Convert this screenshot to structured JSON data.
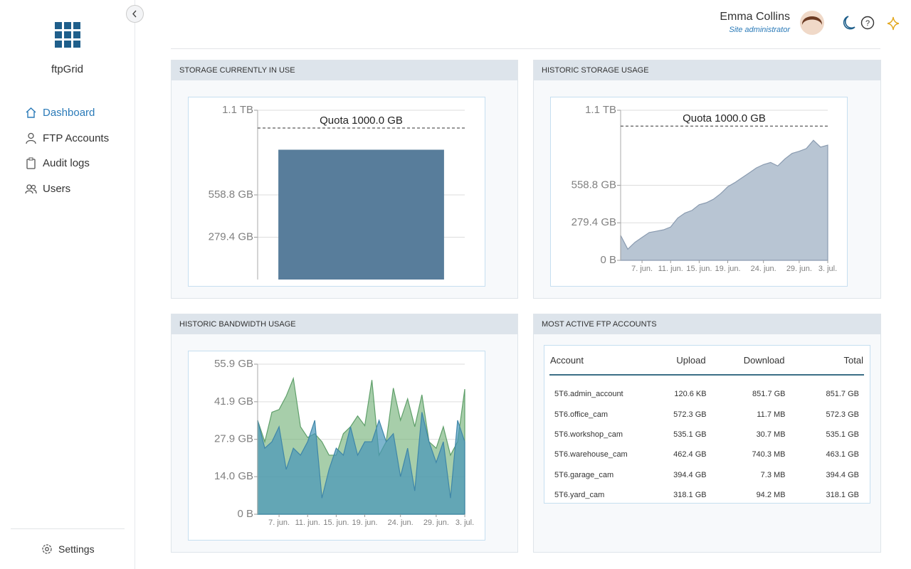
{
  "sidebar": {
    "brand": "ftpGrid",
    "nav": [
      "Dashboard",
      "FTP Accounts",
      "Audit logs",
      "Users"
    ],
    "settings": "Settings"
  },
  "header": {
    "user": "Emma Collins",
    "role": "Site administrator"
  },
  "chart_data": [
    {
      "type": "bar",
      "title": "STORAGE CURRENTLY IN USE",
      "categories": [
        null
      ],
      "values": [
        857
      ],
      "color": "#587d9b",
      "ylim": [
        0,
        1117.6
      ],
      "yticks": [
        {
          "value": 279.4,
          "label": "279.4 GB"
        },
        {
          "value": 558.8,
          "label": "558.8 GB"
        },
        {
          "value": 1117.6,
          "label": "1.1 TB"
        }
      ],
      "annotations": [
        {
          "value": 1000,
          "label": "Quota 1000.0 GB"
        }
      ],
      "grid": true
    },
    {
      "type": "area",
      "title": "HISTORIC STORAGE USAGE",
      "x": [
        4,
        5,
        6,
        7,
        8,
        9,
        10,
        11,
        12,
        13,
        14,
        15,
        16,
        17,
        18,
        19,
        20,
        21,
        22,
        23,
        24,
        25,
        26,
        27,
        28,
        29,
        30,
        31,
        32,
        33
      ],
      "series": [
        {
          "color": "#8a9bb0",
          "fill": "#b8c5d3",
          "values": [
            186,
            83,
            134,
            171,
            207,
            217,
            227,
            248,
            315,
            352,
            372,
            414,
            429,
            455,
            496,
            548,
            579,
            615,
            651,
            688,
            713,
            729,
            703,
            755,
            796,
            812,
            832,
            894,
            843,
            858
          ]
        }
      ],
      "xlim": [
        4,
        33
      ],
      "xticks": [
        {
          "value": 7,
          "label": "7. jun."
        },
        {
          "value": 11,
          "label": "11. jun."
        },
        {
          "value": 15,
          "label": "15. jun."
        },
        {
          "value": 19,
          "label": "19. jun."
        },
        {
          "value": 24,
          "label": "24. jun."
        },
        {
          "value": 29,
          "label": "29. jun."
        },
        {
          "value": 33,
          "label": "3. jul."
        }
      ],
      "ylim": [
        0,
        1117.6
      ],
      "yticks": [
        {
          "value": 0,
          "label": "0 B"
        },
        {
          "value": 279.4,
          "label": "279.4 GB"
        },
        {
          "value": 558.8,
          "label": "558.8 GB"
        },
        {
          "value": 1117.6,
          "label": "1.1 TB"
        }
      ],
      "annotations": [
        {
          "value": 1000,
          "label": "Quota 1000.0 GB"
        }
      ],
      "grid": true
    },
    {
      "type": "area",
      "title": "HISTORIC BANDWIDTH USAGE",
      "x": [
        4,
        5,
        6,
        7,
        8,
        9,
        10,
        11,
        12,
        13,
        14,
        15,
        16,
        17,
        18,
        19,
        20,
        21,
        22,
        23,
        24,
        25,
        26,
        27,
        28,
        29,
        30,
        31,
        32,
        33
      ],
      "series": [
        {
          "color": "#5f9f6a",
          "fill": "rgba(120,180,125,0.65)",
          "values": [
            35,
            27,
            38,
            39,
            44,
            50.6,
            32.6,
            28.6,
            30,
            27,
            22,
            22,
            30,
            32.6,
            36.6,
            33,
            50,
            22,
            27,
            47,
            35,
            43,
            32.6,
            44.5,
            27,
            24.6,
            32.6,
            22,
            27,
            46.6
          ]
        },
        {
          "color": "#3f86a8",
          "fill": "rgba(70,150,185,0.7)",
          "values": [
            35,
            24.6,
            27,
            32.6,
            16.7,
            24.6,
            22,
            27,
            35,
            6,
            16.7,
            24.6,
            22,
            32.6,
            22,
            27,
            27,
            35,
            27,
            30,
            14,
            24.6,
            8.7,
            38,
            27,
            19.3,
            27,
            6,
            35,
            27
          ]
        }
      ],
      "xlim": [
        4,
        33
      ],
      "xticks": [
        {
          "value": 7,
          "label": "7. jun."
        },
        {
          "value": 11,
          "label": "11. jun."
        },
        {
          "value": 15,
          "label": "15. jun."
        },
        {
          "value": 19,
          "label": "19. jun."
        },
        {
          "value": 24,
          "label": "24. jun."
        },
        {
          "value": 29,
          "label": "29. jun."
        },
        {
          "value": 33,
          "label": "3. jul."
        }
      ],
      "ylim": [
        0,
        55.9
      ],
      "yticks": [
        {
          "value": 0,
          "label": "0 B"
        },
        {
          "value": 14.0,
          "label": "14.0 GB"
        },
        {
          "value": 27.9,
          "label": "27.9 GB"
        },
        {
          "value": 41.9,
          "label": "41.9 GB"
        },
        {
          "value": 55.9,
          "label": "55.9 GB"
        }
      ],
      "grid": true
    }
  ],
  "table": {
    "title": "MOST ACTIVE FTP ACCOUNTS",
    "columns": [
      "Account",
      "Upload",
      "Download",
      "Total"
    ],
    "rows": [
      [
        "5T6.admin_account",
        "120.6 KB",
        "851.7 GB",
        "851.7 GB"
      ],
      [
        "5T6.office_cam",
        "572.3 GB",
        "11.7 MB",
        "572.3 GB"
      ],
      [
        "5T6.workshop_cam",
        "535.1 GB",
        "30.7 MB",
        "535.1 GB"
      ],
      [
        "5T6.warehouse_cam",
        "462.4 GB",
        "740.3 MB",
        "463.1 GB"
      ],
      [
        "5T6.garage_cam",
        "394.4 GB",
        "7.3 MB",
        "394.4 GB"
      ],
      [
        "5T6.yard_cam",
        "318.1 GB",
        "94.2 MB",
        "318.1 GB"
      ]
    ]
  }
}
